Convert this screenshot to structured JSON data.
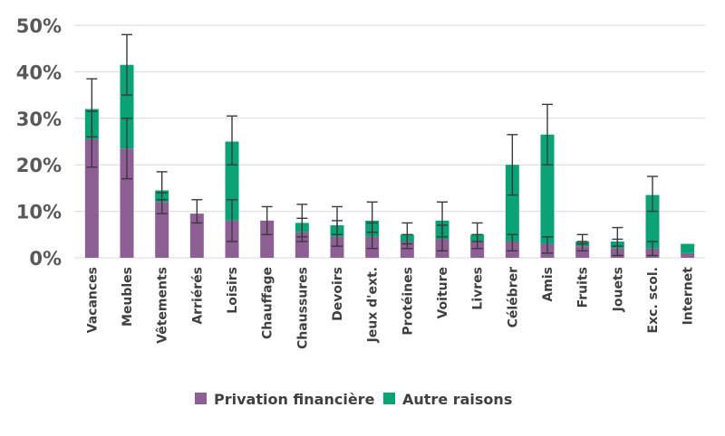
{
  "chart_data": {
    "type": "bar",
    "stacked": true,
    "categories": [
      "Vacances",
      "Meubles",
      "Vêtements",
      "Arriérés",
      "Loisirs",
      "Chauffage",
      "Chaussures",
      "Devoirs",
      "Jeux d'ext.",
      "Protéines",
      "Voiture",
      "Livres",
      "Célébrer",
      "Amis",
      "Fruits",
      "Jouets",
      "Exc. scol.",
      "Internet"
    ],
    "series": [
      {
        "name": "Privation financière",
        "color": "#8e5f94",
        "values": [
          25.5,
          23.5,
          12.0,
          9.5,
          8.0,
          8.0,
          5.5,
          4.5,
          4.5,
          3.5,
          4.0,
          3.5,
          3.5,
          3.0,
          2.5,
          2.0,
          2.0,
          1.0
        ],
        "err_low": [
          19.5,
          17.0,
          9.5,
          7.5,
          3.5,
          5.0,
          3.5,
          2.5,
          2.0,
          2.0,
          1.5,
          2.0,
          1.5,
          1.0,
          1.5,
          0.5,
          0.5,
          null
        ],
        "err_high": [
          31.5,
          30.0,
          14.0,
          12.5,
          12.5,
          11.0,
          8.5,
          8.0,
          7.5,
          5.0,
          7.0,
          5.0,
          5.0,
          4.5,
          3.5,
          4.0,
          3.5,
          null
        ]
      },
      {
        "name": "Autre raisons",
        "color": "#0aa376",
        "values": [
          6.5,
          18.0,
          2.5,
          0.0,
          17.0,
          0.0,
          2.0,
          2.5,
          3.5,
          1.5,
          4.0,
          1.5,
          16.5,
          23.5,
          1.0,
          1.5,
          11.5,
          2.0
        ],
        "err_low": [
          26.0,
          35.0,
          12.5,
          null,
          20.0,
          null,
          4.5,
          5.0,
          5.5,
          3.0,
          4.5,
          3.5,
          13.5,
          20.0,
          3.0,
          2.5,
          10.0,
          null
        ],
        "err_high": [
          38.5,
          48.0,
          18.5,
          null,
          30.5,
          null,
          11.5,
          11.0,
          12.0,
          7.5,
          12.0,
          7.5,
          26.5,
          33.0,
          5.0,
          6.5,
          17.5,
          null
        ]
      }
    ],
    "y_tick_labels": [
      "0%",
      "10%",
      "20%",
      "30%",
      "40%",
      "50%"
    ],
    "ylim": [
      0,
      50
    ],
    "grid": true,
    "legend_position": "bottom-center",
    "title": "",
    "xlabel": "",
    "ylabel": ""
  }
}
